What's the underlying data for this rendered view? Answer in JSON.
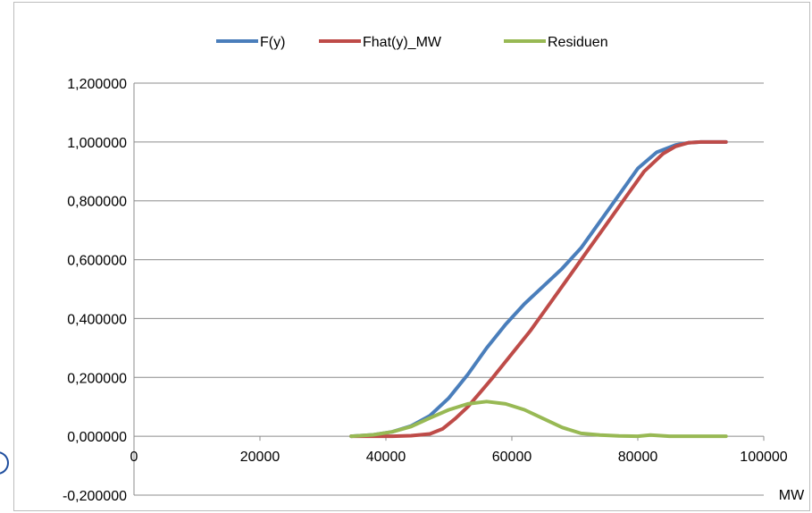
{
  "chart_data": {
    "type": "line",
    "title": "",
    "xlabel": "MW",
    "ylabel": "",
    "xlim": [
      0,
      100000
    ],
    "ylim": [
      -0.2,
      1.2
    ],
    "x_ticks": [
      "0",
      "20000",
      "40000",
      "60000",
      "80000",
      "100000"
    ],
    "x_tick_values": [
      0,
      20000,
      40000,
      60000,
      80000,
      100000
    ],
    "y_ticks": [
      "-0,200000",
      "0,000000",
      "0,200000",
      "0,400000",
      "0,600000",
      "0,800000",
      "1,000000",
      "1,200000"
    ],
    "y_tick_values": [
      -0.2,
      0,
      0.2,
      0.4,
      0.6,
      0.8,
      1.0,
      1.2
    ],
    "grid": "horizontal",
    "legend_position": "top",
    "series": [
      {
        "name": "F(y)",
        "color": "#4a7ebb",
        "x": [
          34500,
          38000,
          41000,
          44000,
          47000,
          50000,
          53000,
          56000,
          59000,
          62000,
          65000,
          68000,
          71000,
          74000,
          77000,
          80000,
          83000,
          86000,
          88000,
          90000,
          92000,
          94000
        ],
        "y": [
          0.0,
          0.005,
          0.015,
          0.035,
          0.07,
          0.13,
          0.21,
          0.3,
          0.38,
          0.45,
          0.51,
          0.57,
          0.64,
          0.73,
          0.82,
          0.91,
          0.965,
          0.99,
          0.997,
          1.0,
          1.0,
          1.0
        ]
      },
      {
        "name": "Fhat(y)_MW",
        "color": "#be4b48",
        "x": [
          34500,
          38000,
          41000,
          44000,
          47000,
          49000,
          51000,
          53000,
          55000,
          57000,
          60000,
          63000,
          66000,
          69000,
          72000,
          75000,
          78000,
          81000,
          84000,
          86000,
          88000,
          90000,
          92000,
          94000
        ],
        "y": [
          0.0,
          0.0,
          0.0,
          0.002,
          0.008,
          0.025,
          0.06,
          0.1,
          0.15,
          0.2,
          0.28,
          0.36,
          0.45,
          0.54,
          0.63,
          0.72,
          0.81,
          0.9,
          0.96,
          0.985,
          0.997,
          1.0,
          1.0,
          1.0
        ]
      },
      {
        "name": "Residuen",
        "color": "#98b954",
        "x": [
          34500,
          38000,
          41000,
          44000,
          47000,
          50000,
          53000,
          56000,
          59000,
          62000,
          65000,
          68000,
          71000,
          74000,
          77000,
          80000,
          82000,
          85000,
          88000,
          91000,
          94000
        ],
        "y": [
          0.0,
          0.005,
          0.015,
          0.033,
          0.062,
          0.09,
          0.11,
          0.118,
          0.11,
          0.09,
          0.06,
          0.03,
          0.01,
          0.004,
          0.001,
          0.0,
          0.004,
          0.0,
          0.0,
          0.0,
          0.0
        ]
      }
    ]
  }
}
